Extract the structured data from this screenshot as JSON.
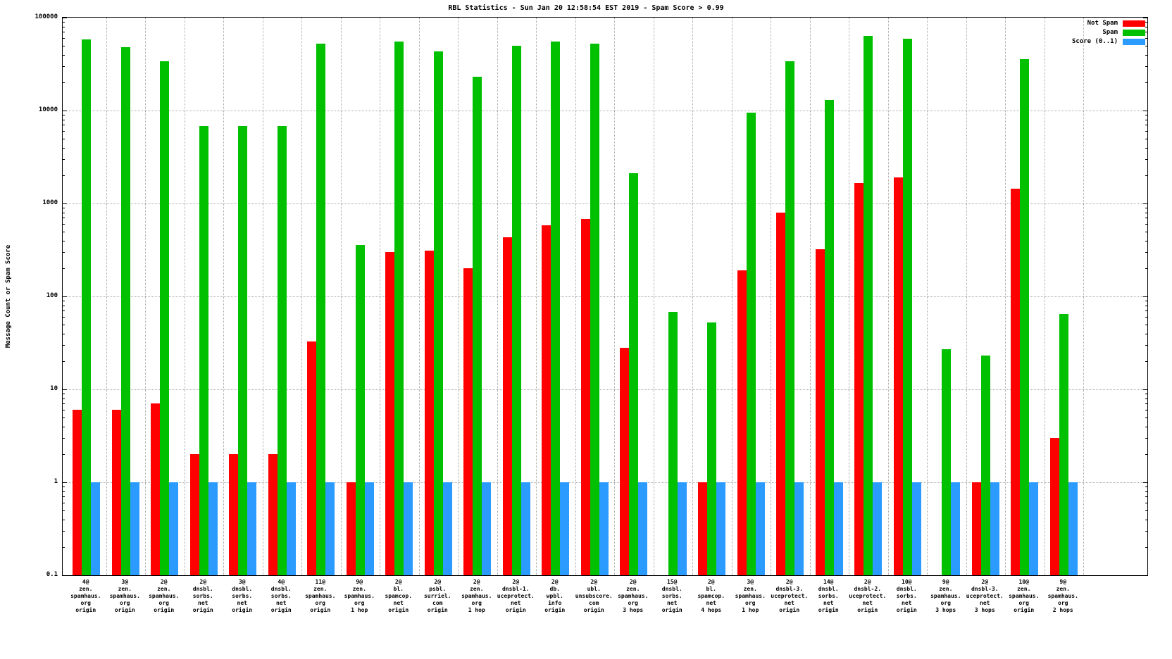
{
  "chart_data": {
    "type": "bar",
    "title": "RBL Statistics - Sun Jan 20 12:58:54 EST 2019 - Spam Score > 0.99",
    "xlabel": "",
    "ylabel": "Message Count or Spam Score",
    "scale": "log",
    "ylim": [
      0.1,
      100000
    ],
    "grid": true,
    "legend_position": "top-right",
    "yticks": [
      {
        "v": 100000,
        "label": "100000"
      },
      {
        "v": 10000,
        "label": "10000"
      },
      {
        "v": 1000,
        "label": "1000"
      },
      {
        "v": 100,
        "label": "100"
      },
      {
        "v": 10,
        "label": "10"
      },
      {
        "v": 1,
        "label": "1"
      },
      {
        "v": 0.1,
        "label": "0.1"
      }
    ],
    "categories": [
      "4@\nzen.\nspamhaus.\norg\norigin",
      "3@\nzen.\nspamhaus.\norg\norigin",
      "2@\nzen.\nspamhaus.\norg\norigin",
      "2@\ndnsbl.\nsorbs.\nnet\norigin",
      "3@\ndnsbl.\nsorbs.\nnet\norigin",
      "4@\ndnsbl.\nsorbs.\nnet\norigin",
      "11@\nzen.\nspamhaus.\norg\norigin",
      "9@\nzen.\nspamhaus.\norg\n1 hop",
      "2@\nbl.\nspamcop.\nnet\norigin",
      "2@\npsbl.\nsurriel.\ncom\norigin",
      "2@\nzen.\nspamhaus.\norg\n1 hop",
      "2@\ndnsbl-1.\nuceprotect.\nnet\norigin",
      "2@\ndb.\nwpbl.\ninfo\norigin",
      "2@\nubl.\nunsubscore.\ncom\norigin",
      "2@\nzen.\nspamhaus.\norg\n3 hops",
      "15@\ndnsbl.\nsorbs.\nnet\norigin",
      "2@\nbl.\nspamcop.\nnet\n4 hops",
      "3@\nzen.\nspamhaus.\norg\n1 hop",
      "2@\ndnsbl-3.\nuceprotect.\nnet\norigin",
      "14@\ndnsbl.\nsorbs.\nnet\norigin",
      "2@\ndnsbl-2.\nuceprotect.\nnet\norigin",
      "10@\ndnsbl.\nsorbs.\nnet\norigin",
      "9@\nzen.\nspamhaus.\norg\n3 hops",
      "2@\ndnsbl-3.\nuceprotect.\nnet\n3 hops",
      "10@\nzen.\nspamhaus.\norg\norigin",
      "9@\nzen.\nspamhaus.\norg\n2 hops"
    ],
    "series": [
      {
        "name": "Not Spam",
        "color": "#ff0000",
        "values": [
          6,
          6,
          7,
          2,
          2,
          2,
          33,
          1,
          300,
          310,
          200,
          430,
          580,
          680,
          28,
          0,
          1,
          190,
          800,
          320,
          1650,
          1900,
          0,
          1,
          1450,
          3
        ]
      },
      {
        "name": "Spam",
        "color": "#00c000",
        "values": [
          58000,
          48000,
          34000,
          6800,
          6800,
          6800,
          52000,
          360,
          55000,
          43000,
          23000,
          50000,
          55000,
          52000,
          2100,
          68,
          52,
          9500,
          34000,
          13000,
          63000,
          59000,
          27,
          23,
          36000,
          65
        ]
      },
      {
        "name": "Score (0..1)",
        "color": "#2b9bff",
        "values": [
          1,
          1,
          1,
          1,
          1,
          1,
          1,
          1,
          1,
          1,
          1,
          1,
          1,
          1,
          1,
          1,
          1,
          1,
          1,
          1,
          1,
          1,
          1,
          1,
          1,
          1
        ]
      }
    ]
  }
}
